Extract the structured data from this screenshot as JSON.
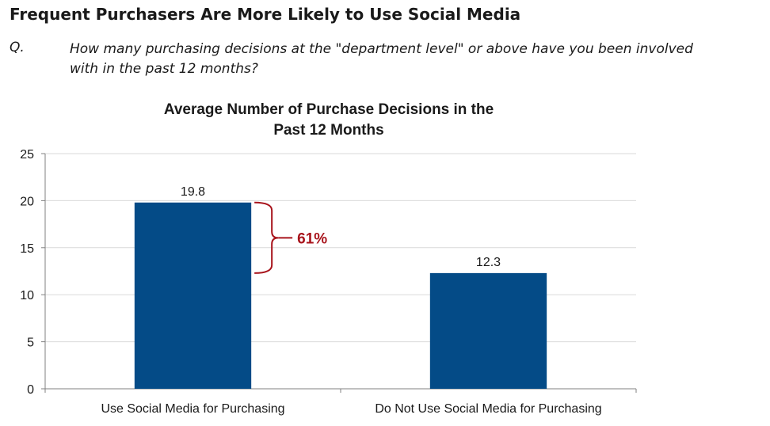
{
  "slide": {
    "title": "Frequent Purchasers Are More Likely to Use Social Media",
    "question_label": "Q.",
    "question_lines": [
      "How many purchasing decisions at the \"department level\" or above have you been involved",
      "with in the past 12 months?"
    ]
  },
  "chart_data": {
    "type": "bar",
    "title_lines": [
      "Average Number of Purchase Decisions in the",
      "Past 12 Months"
    ],
    "categories": [
      "Use Social Media for Purchasing",
      "Do Not Use Social Media for Purchasing"
    ],
    "values": [
      19.8,
      12.3
    ],
    "data_labels": [
      "19.8",
      "12.3"
    ],
    "ylim": [
      0,
      25
    ],
    "yticks": [
      0,
      5,
      10,
      15,
      20,
      25
    ],
    "grid": true,
    "legend": "none",
    "annotation": {
      "text": "61%",
      "between": [
        0,
        1
      ]
    },
    "colors": {
      "bar": "#044b87",
      "annotation": "#a8141c",
      "grid": "#d9d9d9",
      "axis": "#808080"
    }
  }
}
